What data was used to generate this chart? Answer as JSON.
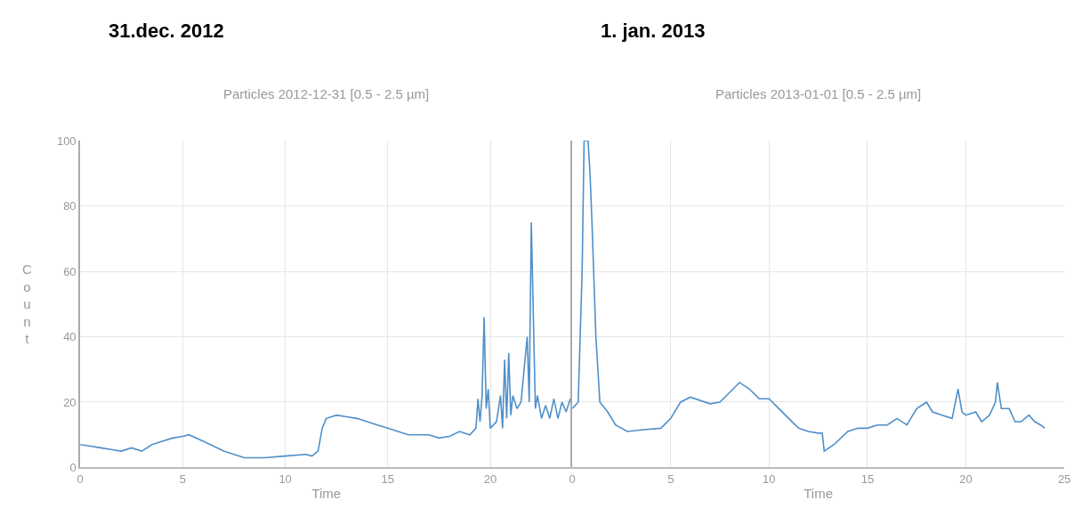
{
  "chart_data": [
    {
      "type": "line",
      "title": "31.dec. 2012",
      "subtitle": "Particles 2012-12-31 [0.5 - 2.5 µm]",
      "xlabel": "Time",
      "ylabel": "Count",
      "xlim": [
        0,
        24
      ],
      "xticks": [
        0,
        5,
        10,
        15,
        20
      ],
      "ylim": [
        0,
        100
      ],
      "yticks": [
        0,
        20,
        40,
        60,
        80,
        100
      ],
      "grid": true,
      "marker": "none",
      "line_style": "solid",
      "series": [
        {
          "color": "#4f8fc9",
          "x": [
            0,
            0.5,
            1,
            1.5,
            2,
            2.5,
            3,
            3.5,
            4,
            4.5,
            5,
            5.3,
            6,
            7,
            7.5,
            8,
            9,
            10,
            11,
            11.3,
            11.6,
            11.8,
            12,
            12.5,
            13,
            13.5,
            14,
            14.5,
            15,
            15.5,
            16,
            17,
            17.5,
            18,
            18.5,
            19,
            19.3,
            19.4,
            19.5,
            19.6,
            19.7,
            19.8,
            19.9,
            20,
            20.3,
            20.5,
            20.6,
            20.7,
            20.8,
            20.9,
            21,
            21.1,
            21.3,
            21.5,
            21.8,
            21.9,
            22,
            22.2,
            22.3,
            22.5,
            22.7,
            22.9,
            23.1,
            23.3,
            23.5,
            23.7,
            23.9,
            24
          ],
          "values": [
            7,
            6.5,
            6,
            5.5,
            5,
            6,
            5,
            7,
            8,
            9,
            9.5,
            10,
            8,
            5,
            4,
            3,
            3,
            3.5,
            4,
            3.5,
            5,
            12,
            15,
            16,
            15.5,
            15,
            14,
            13,
            12,
            11,
            10,
            10,
            9,
            9.5,
            11,
            10,
            12,
            21,
            14,
            22,
            46,
            18,
            24,
            12,
            14,
            22,
            12,
            33,
            15,
            35,
            16,
            22,
            18,
            20,
            40,
            20,
            75,
            18,
            22,
            15,
            19,
            15,
            21,
            15,
            20,
            17,
            21,
            18
          ]
        }
      ]
    },
    {
      "type": "line",
      "title": "1. jan. 2013",
      "subtitle": "Particles 2013-01-01 [0.5 - 2.5 µm]",
      "xlabel": "Time",
      "xlim": [
        0,
        25
      ],
      "xticks": [
        0,
        5,
        10,
        15,
        20,
        25
      ],
      "ylim": [
        0,
        100
      ],
      "yticks": [
        0,
        20,
        40,
        60,
        80,
        100
      ],
      "tick_labels": "x",
      "grid": true,
      "marker": "none",
      "line_style": "solid",
      "series": [
        {
          "color": "#4f8fc9",
          "x": [
            0,
            0.3,
            0.5,
            0.6,
            0.8,
            0.9,
            1,
            1.2,
            1.4,
            1.8,
            2.2,
            2.8,
            3.5,
            4.5,
            5,
            5.5,
            6,
            7,
            7.5,
            8,
            8.5,
            9,
            9.5,
            10,
            10.5,
            11,
            11.5,
            12,
            12.5,
            12.7,
            12.8,
            13.3,
            14,
            14.5,
            15,
            15.5,
            16,
            16.5,
            17,
            17.5,
            18,
            18.3,
            18.8,
            19.3,
            19.6,
            19.8,
            20,
            20.5,
            20.8,
            21.2,
            21.5,
            21.6,
            21.8,
            22.2,
            22.5,
            22.8,
            23.2,
            23.5,
            23.8,
            24
          ],
          "values": [
            18,
            20,
            60,
            100,
            100,
            90,
            75,
            40,
            20,
            17,
            13,
            11,
            11.5,
            12,
            15,
            20,
            21.5,
            19.5,
            20,
            23,
            26,
            24,
            21,
            21,
            18,
            15,
            12,
            11,
            10.5,
            10.5,
            5,
            7,
            11,
            12,
            12,
            13,
            13,
            15,
            13,
            18,
            20,
            17,
            16,
            15,
            24,
            17,
            16,
            17,
            14,
            16,
            20,
            26,
            18,
            18,
            14,
            14,
            16,
            14,
            13,
            12
          ]
        }
      ]
    }
  ]
}
